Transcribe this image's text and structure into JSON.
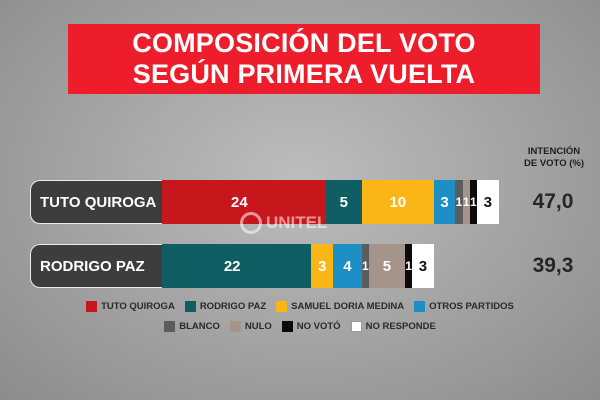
{
  "title": {
    "line1": "COMPOSICIÓN DEL VOTO",
    "line2": "SEGÚN PRIMERA VUELTA"
  },
  "header": {
    "intencion_line1": "INTENCIÓN",
    "intencion_line2": "DE VOTO (%)"
  },
  "watermark": "UNITEL",
  "colors": {
    "TUTO QUIROGA": "#c8161d",
    "RODRIGO PAZ": "#0f5e63",
    "SAMUEL DORIA MEDINA": "#f9b616",
    "OTROS PARTIDOS": "#1d8fc4",
    "BLANCO": "#5c5c5c",
    "NULO": "#a4948a",
    "NO VOTÓ": "#0b0b0b",
    "NO RESPONDE": "#ffffff"
  },
  "chart_data": {
    "type": "bar",
    "orientation": "horizontal",
    "stacked": true,
    "title": "COMPOSICIÓN DEL VOTO SEGÚN PRIMERA VUELTA",
    "categories": [
      "TUTO QUIROGA",
      "RODRIGO PAZ"
    ],
    "totals": [
      "47,0",
      "39,3"
    ],
    "legend": [
      "TUTO QUIROGA",
      "RODRIGO PAZ",
      "SAMUEL DORIA MEDINA",
      "OTROS PARTIDOS",
      "BLANCO",
      "NULO",
      "NO VOTÓ",
      "NO RESPONDE"
    ],
    "rows": [
      {
        "label": "TUTO QUIROGA",
        "total": "47,0",
        "segments": [
          {
            "series": "TUTO QUIROGA",
            "value": 24,
            "label": "24"
          },
          {
            "series": "RODRIGO PAZ",
            "value": 5,
            "label": "5"
          },
          {
            "series": "SAMUEL DORIA MEDINA",
            "value": 10,
            "label": "10"
          },
          {
            "series": "OTROS PARTIDOS",
            "value": 3,
            "label": "3"
          },
          {
            "series": "BLANCO",
            "value": 1,
            "label": "1"
          },
          {
            "series": "NULO",
            "value": 1,
            "label": "1"
          },
          {
            "series": "NO VOTÓ",
            "value": 1,
            "label": "1"
          },
          {
            "series": "NO RESPONDE",
            "value": 3,
            "label": "3"
          }
        ]
      },
      {
        "label": "RODRIGO PAZ",
        "total": "39,3",
        "segments": [
          {
            "series": "RODRIGO PAZ",
            "value": 22,
            "label": "22"
          },
          {
            "series": "SAMUEL DORIA MEDINA",
            "value": 3,
            "label": "3"
          },
          {
            "series": "OTROS PARTIDOS",
            "value": 4,
            "label": "4"
          },
          {
            "series": "BLANCO",
            "value": 1,
            "label": "1"
          },
          {
            "series": "NULO",
            "value": 5,
            "label": "5"
          },
          {
            "series": "NO VOTÓ",
            "value": 1,
            "label": "1"
          },
          {
            "series": "NO RESPONDE",
            "value": 3,
            "label": "3"
          }
        ]
      }
    ]
  }
}
